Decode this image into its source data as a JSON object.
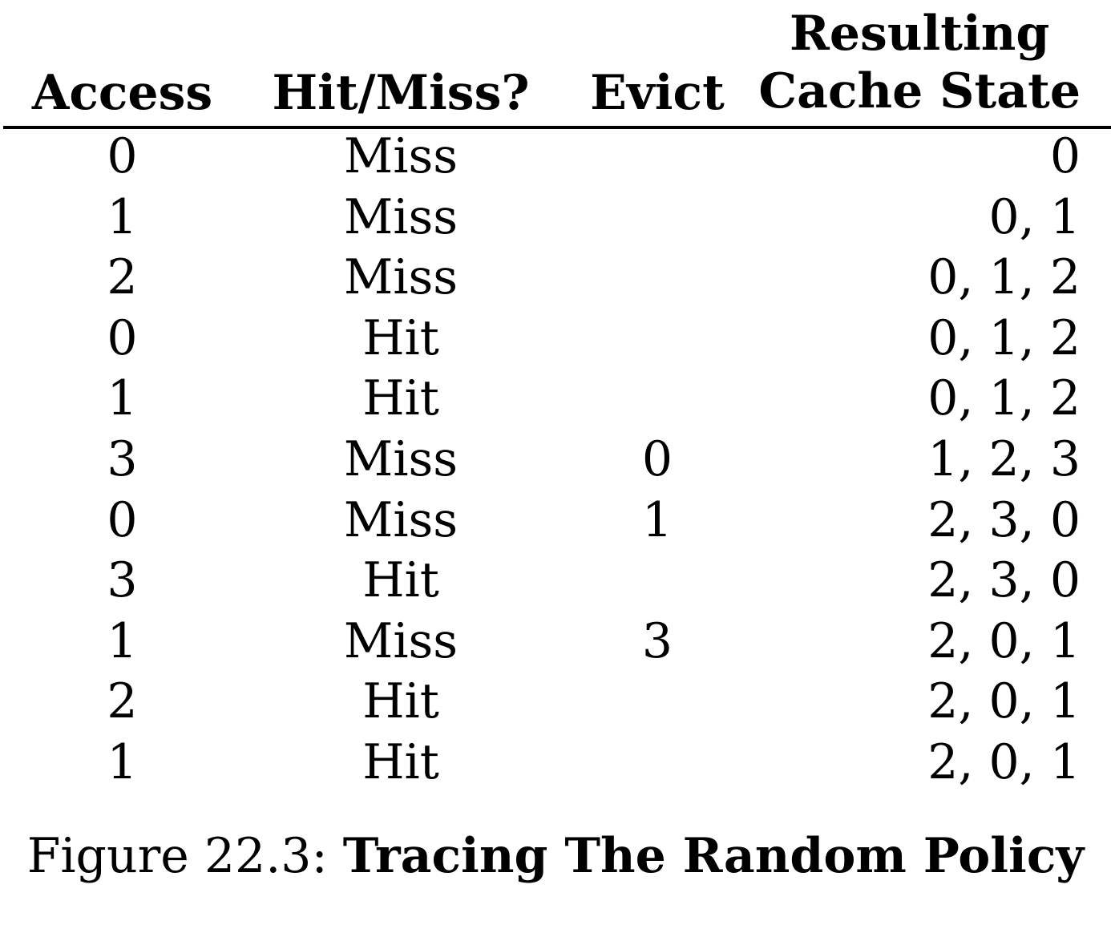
{
  "table": {
    "headers": {
      "access": "Access",
      "hit_miss": "Hit/Miss?",
      "evict": "Evict",
      "state_line1": "Resulting",
      "state_line2": "Cache State"
    },
    "rows": [
      {
        "access": "0",
        "hit_miss": "Miss",
        "evict": "",
        "state": "0"
      },
      {
        "access": "1",
        "hit_miss": "Miss",
        "evict": "",
        "state": "0, 1"
      },
      {
        "access": "2",
        "hit_miss": "Miss",
        "evict": "",
        "state": "0, 1, 2"
      },
      {
        "access": "0",
        "hit_miss": "Hit",
        "evict": "",
        "state": "0, 1, 2"
      },
      {
        "access": "1",
        "hit_miss": "Hit",
        "evict": "",
        "state": "0, 1, 2"
      },
      {
        "access": "3",
        "hit_miss": "Miss",
        "evict": "0",
        "state": "1, 2, 3"
      },
      {
        "access": "0",
        "hit_miss": "Miss",
        "evict": "1",
        "state": "2, 3, 0"
      },
      {
        "access": "3",
        "hit_miss": "Hit",
        "evict": "",
        "state": "2, 3, 0"
      },
      {
        "access": "1",
        "hit_miss": "Miss",
        "evict": "3",
        "state": "2, 0, 1"
      },
      {
        "access": "2",
        "hit_miss": "Hit",
        "evict": "",
        "state": "2, 0, 1"
      },
      {
        "access": "1",
        "hit_miss": "Hit",
        "evict": "",
        "state": "2, 0, 1"
      }
    ]
  },
  "caption": {
    "label": "Figure 22.3: ",
    "title": "Tracing The Random Policy"
  }
}
